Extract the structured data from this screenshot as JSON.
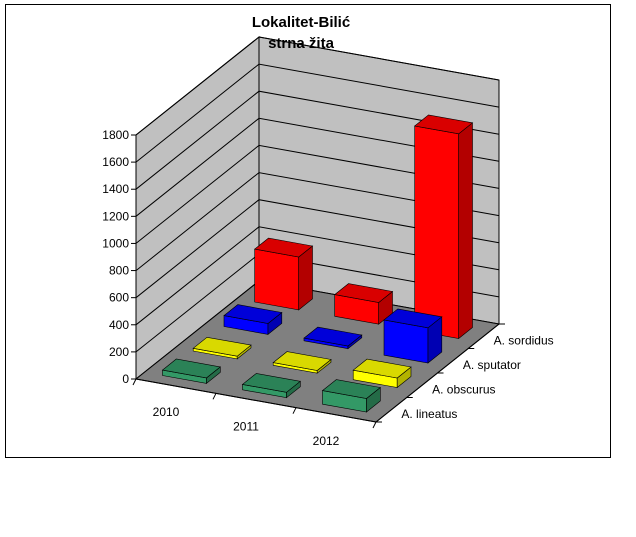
{
  "chart_data": {
    "type": "bar",
    "subtype": "3d-column",
    "title": "Lokalitet-Bilić",
    "subtitle": "strna žita",
    "categories": [
      "2010",
      "2011",
      "2012"
    ],
    "series": [
      {
        "name": "A. lineatus",
        "values": [
          40,
          40,
          100
        ],
        "color": "#339966"
      },
      {
        "name": "A. obscurus",
        "values": [
          20,
          20,
          70
        ],
        "color": "#ffff00"
      },
      {
        "name": "A. sputator",
        "values": [
          80,
          20,
          260
        ],
        "color": "#0000ff"
      },
      {
        "name": "A. sordidus",
        "values": [
          390,
          160,
          1510
        ],
        "color": "#ff0000"
      }
    ],
    "ylim": [
      0,
      1800
    ],
    "yticks": [
      0,
      200,
      400,
      600,
      800,
      1000,
      1200,
      1400,
      1600,
      1800
    ],
    "grid": true,
    "colors": {
      "walls": "#c0c0c0",
      "floor": "#808080",
      "frame": "#000000"
    }
  }
}
